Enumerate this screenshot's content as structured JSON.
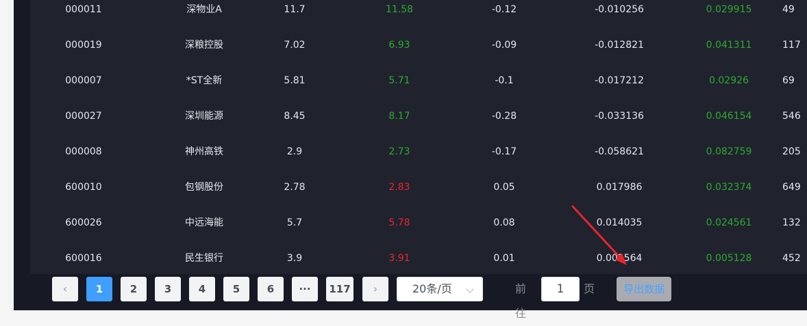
{
  "table": {
    "rows": [
      {
        "code": "000011",
        "name": "深物业A",
        "open": "11.7",
        "now": "11.58",
        "now_color": "green",
        "change": "-0.12",
        "pct": "-0.010256",
        "amp": "0.029915",
        "vol": "49"
      },
      {
        "code": "000019",
        "name": "深粮控股",
        "open": "7.02",
        "now": "6.93",
        "now_color": "green",
        "change": "-0.09",
        "pct": "-0.012821",
        "amp": "0.041311",
        "vol": "117"
      },
      {
        "code": "000007",
        "name": "*ST全新",
        "open": "5.81",
        "now": "5.71",
        "now_color": "green",
        "change": "-0.1",
        "pct": "-0.017212",
        "amp": "0.02926",
        "vol": "69"
      },
      {
        "code": "000027",
        "name": "深圳能源",
        "open": "8.45",
        "now": "8.17",
        "now_color": "green",
        "change": "-0.28",
        "pct": "-0.033136",
        "amp": "0.046154",
        "vol": "546"
      },
      {
        "code": "000008",
        "name": "神州高铁",
        "open": "2.9",
        "now": "2.73",
        "now_color": "green",
        "change": "-0.17",
        "pct": "-0.058621",
        "amp": "0.082759",
        "vol": "205"
      },
      {
        "code": "600010",
        "name": "包钢股份",
        "open": "2.78",
        "now": "2.83",
        "now_color": "red",
        "change": "0.05",
        "pct": "0.017986",
        "amp": "0.032374",
        "vol": "649"
      },
      {
        "code": "600026",
        "name": "中远海能",
        "open": "5.7",
        "now": "5.78",
        "now_color": "red",
        "change": "0.08",
        "pct": "0.014035",
        "amp": "0.024561",
        "vol": "132"
      },
      {
        "code": "600016",
        "name": "民生银行",
        "open": "3.9",
        "now": "3.91",
        "now_color": "red",
        "change": "0.01",
        "pct": "0.002564",
        "amp": "0.005128",
        "vol": "452"
      }
    ]
  },
  "pagination": {
    "prev": "‹",
    "next": "›",
    "pages": [
      "1",
      "2",
      "3",
      "4",
      "5",
      "6",
      "···",
      "117"
    ],
    "active_page": "1",
    "page_size": "20条/页",
    "goto_prefix": "前往",
    "goto_value": "1",
    "goto_suffix": "页"
  },
  "actions": {
    "export_label": "导出数据"
  },
  "colors": {
    "up": "#e8242c",
    "down": "#2eaa2e",
    "accent": "#409eff",
    "annotation_arrow": "#e8242c"
  }
}
